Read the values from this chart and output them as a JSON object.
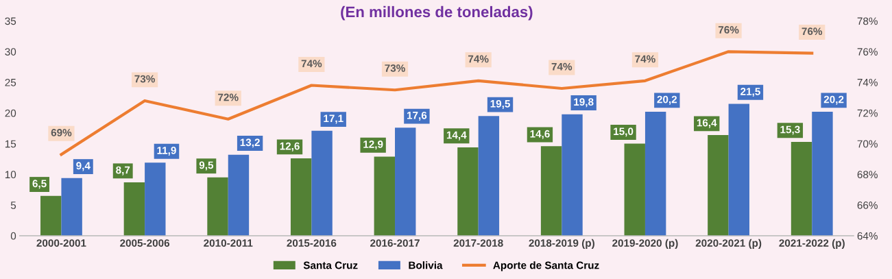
{
  "chart_data": {
    "type": "bar",
    "title": "(En millones de toneladas)",
    "categories": [
      "2000-2001",
      "2005-2006",
      "2010-2011",
      "2015-2016",
      "2016-2017",
      "2017-2018",
      "2018-2019 (p)",
      "2019-2020 (p)",
      "2020-2021 (p)",
      "2021-2022 (p)"
    ],
    "series": [
      {
        "name": "Santa Cruz",
        "color": "#538135",
        "values": [
          6.5,
          8.7,
          9.5,
          12.6,
          12.9,
          14.4,
          14.6,
          15.0,
          16.4,
          15.3
        ],
        "value_labels": [
          "6,5",
          "8,7",
          "9,5",
          "12,6",
          "12,9",
          "14,4",
          "14,6",
          "15,0",
          "16,4",
          "15,3"
        ]
      },
      {
        "name": "Bolivia",
        "color": "#4472c4",
        "values": [
          9.4,
          11.9,
          13.2,
          17.1,
          17.6,
          19.5,
          19.8,
          20.2,
          21.5,
          20.2
        ],
        "value_labels": [
          "9,4",
          "11,9",
          "13,2",
          "17,1",
          "17,6",
          "19,5",
          "19,8",
          "20,2",
          "21,5",
          "20,2"
        ]
      },
      {
        "name": "Aporte de Santa Cruz",
        "type": "line",
        "axis": "y2",
        "color": "#ed7d31",
        "values": [
          69.3,
          72.8,
          71.6,
          73.8,
          73.5,
          74.1,
          73.6,
          74.1,
          76.0,
          75.9
        ],
        "value_labels": [
          "69%",
          "73%",
          "72%",
          "74%",
          "73%",
          "74%",
          "74%",
          "74%",
          "76%",
          "76%"
        ]
      }
    ],
    "ylim": [
      0,
      35
    ],
    "yticks": [
      0,
      5,
      10,
      15,
      20,
      25,
      30,
      35
    ],
    "y2lim": [
      64,
      78
    ],
    "y2ticks": [
      {
        "value": 64,
        "label": "64%"
      },
      {
        "value": 66,
        "label": "66%"
      },
      {
        "value": 68,
        "label": "68%"
      },
      {
        "value": 70,
        "label": "70%"
      },
      {
        "value": 72,
        "label": "72%"
      },
      {
        "value": 74,
        "label": "74%"
      },
      {
        "value": 76,
        "label": "76%"
      },
      {
        "value": 78,
        "label": "78%"
      }
    ],
    "grid": false,
    "legend": "bottom",
    "marker": "none",
    "line_style": "solid"
  }
}
